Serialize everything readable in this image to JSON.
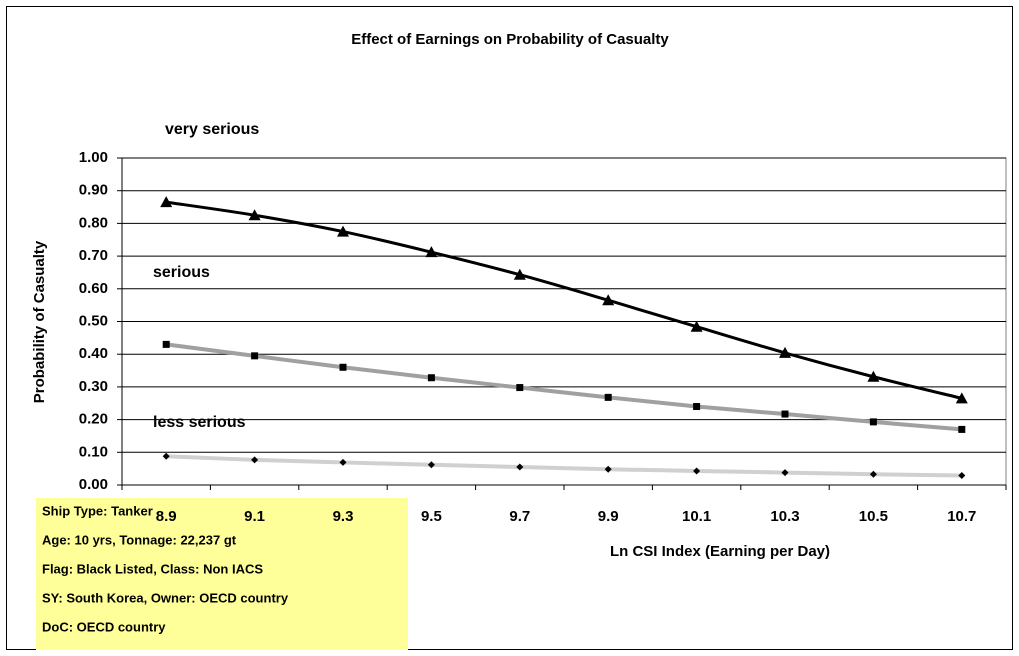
{
  "chart_data": {
    "type": "line",
    "title": "Effect of Earnings on Probability of Casualty",
    "x_label": "Ln CSI Index (Earning per Day)",
    "y_label": "Probability of Casualty",
    "categories": [
      "8.9",
      "9.1",
      "9.3",
      "9.5",
      "9.7",
      "9.9",
      "10.1",
      "10.3",
      "10.5",
      "10.7"
    ],
    "series": [
      {
        "name": "very serious",
        "color": "#000000",
        "marker": "triangle",
        "values": [
          0.865,
          0.825,
          0.775,
          0.712,
          0.643,
          0.565,
          0.484,
          0.404,
          0.331,
          0.265
        ]
      },
      {
        "name": "serious",
        "color": "#a0a0a0",
        "marker": "square",
        "values": [
          0.43,
          0.395,
          0.36,
          0.328,
          0.298,
          0.268,
          0.24,
          0.217,
          0.193,
          0.17
        ]
      },
      {
        "name": "less serious",
        "color": "#d0d0d0",
        "marker": "diamond",
        "values": [
          0.088,
          0.077,
          0.069,
          0.062,
          0.055,
          0.048,
          0.043,
          0.038,
          0.033,
          0.029
        ]
      }
    ],
    "ylim": [
      0,
      1
    ],
    "yticks": [
      {
        "value": 0,
        "label": "0.00"
      },
      {
        "value": 0.1,
        "label": "0.10"
      },
      {
        "value": 0.2,
        "label": "0.20"
      },
      {
        "value": 0.3,
        "label": "0.30"
      },
      {
        "value": 0.4,
        "label": "0.40"
      },
      {
        "value": 0.5,
        "label": "0.50"
      },
      {
        "value": 0.6,
        "label": "0.60"
      },
      {
        "value": 0.7,
        "label": "0.70"
      },
      {
        "value": 0.8,
        "label": "0.80"
      },
      {
        "value": 0.9,
        "label": "0.90"
      },
      {
        "value": 1,
        "label": "1.00"
      }
    ],
    "grid": true,
    "annotations": [
      "Ship Type: Tanker",
      "Age: 10 yrs, Tonnage: 22,237 gt",
      "Flag: Black Listed, Class: Non IACS",
      "SY: South Korea, Owner: OECD country",
      "DoC: OECD country"
    ]
  }
}
